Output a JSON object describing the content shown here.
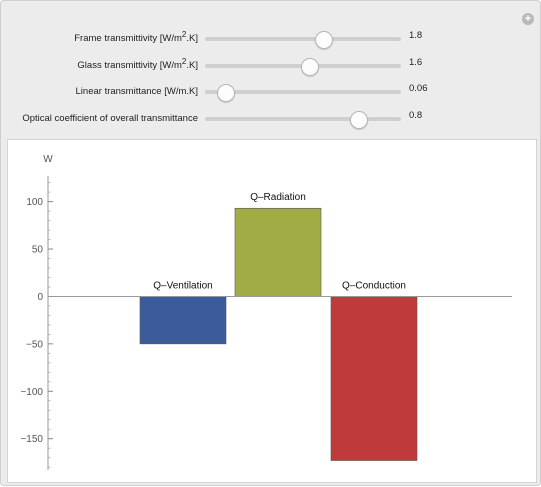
{
  "controls": [
    {
      "label_pre": "Frame transmittivity [W/m",
      "label_sup": "2",
      "label_post": ".K]",
      "value": 1.8,
      "value_text": "1.8"
    },
    {
      "label_pre": "Glass transmittivity [W/m",
      "label_sup": "2",
      "label_post": ".K]",
      "value": 1.6,
      "value_text": "1.6"
    },
    {
      "label_pre": "Linear transmittance [W/m.K]",
      "label_sup": "",
      "label_post": "",
      "value": 0.06,
      "value_text": "0.06"
    },
    {
      "label_pre": "Optical coefficient of overall transmittance",
      "label_sup": "",
      "label_post": "",
      "value": 0.8,
      "value_text": "0.8"
    }
  ],
  "control_fill_fractions": [
    0.6,
    0.53,
    0.1,
    0.78
  ],
  "chart_data": {
    "type": "bar",
    "ylabel": "W",
    "ylim": [
      -183,
      127
    ],
    "yticks": [
      100,
      50,
      0,
      -50,
      -100,
      -150
    ],
    "grid": false,
    "categories": [
      "Q–Ventilation",
      "Q–Radiation",
      "Q–Conduction"
    ],
    "values": [
      -50,
      93,
      -173
    ],
    "colors": [
      "#3b5b9a",
      "#a2ac45",
      "#bf3b3b"
    ]
  }
}
